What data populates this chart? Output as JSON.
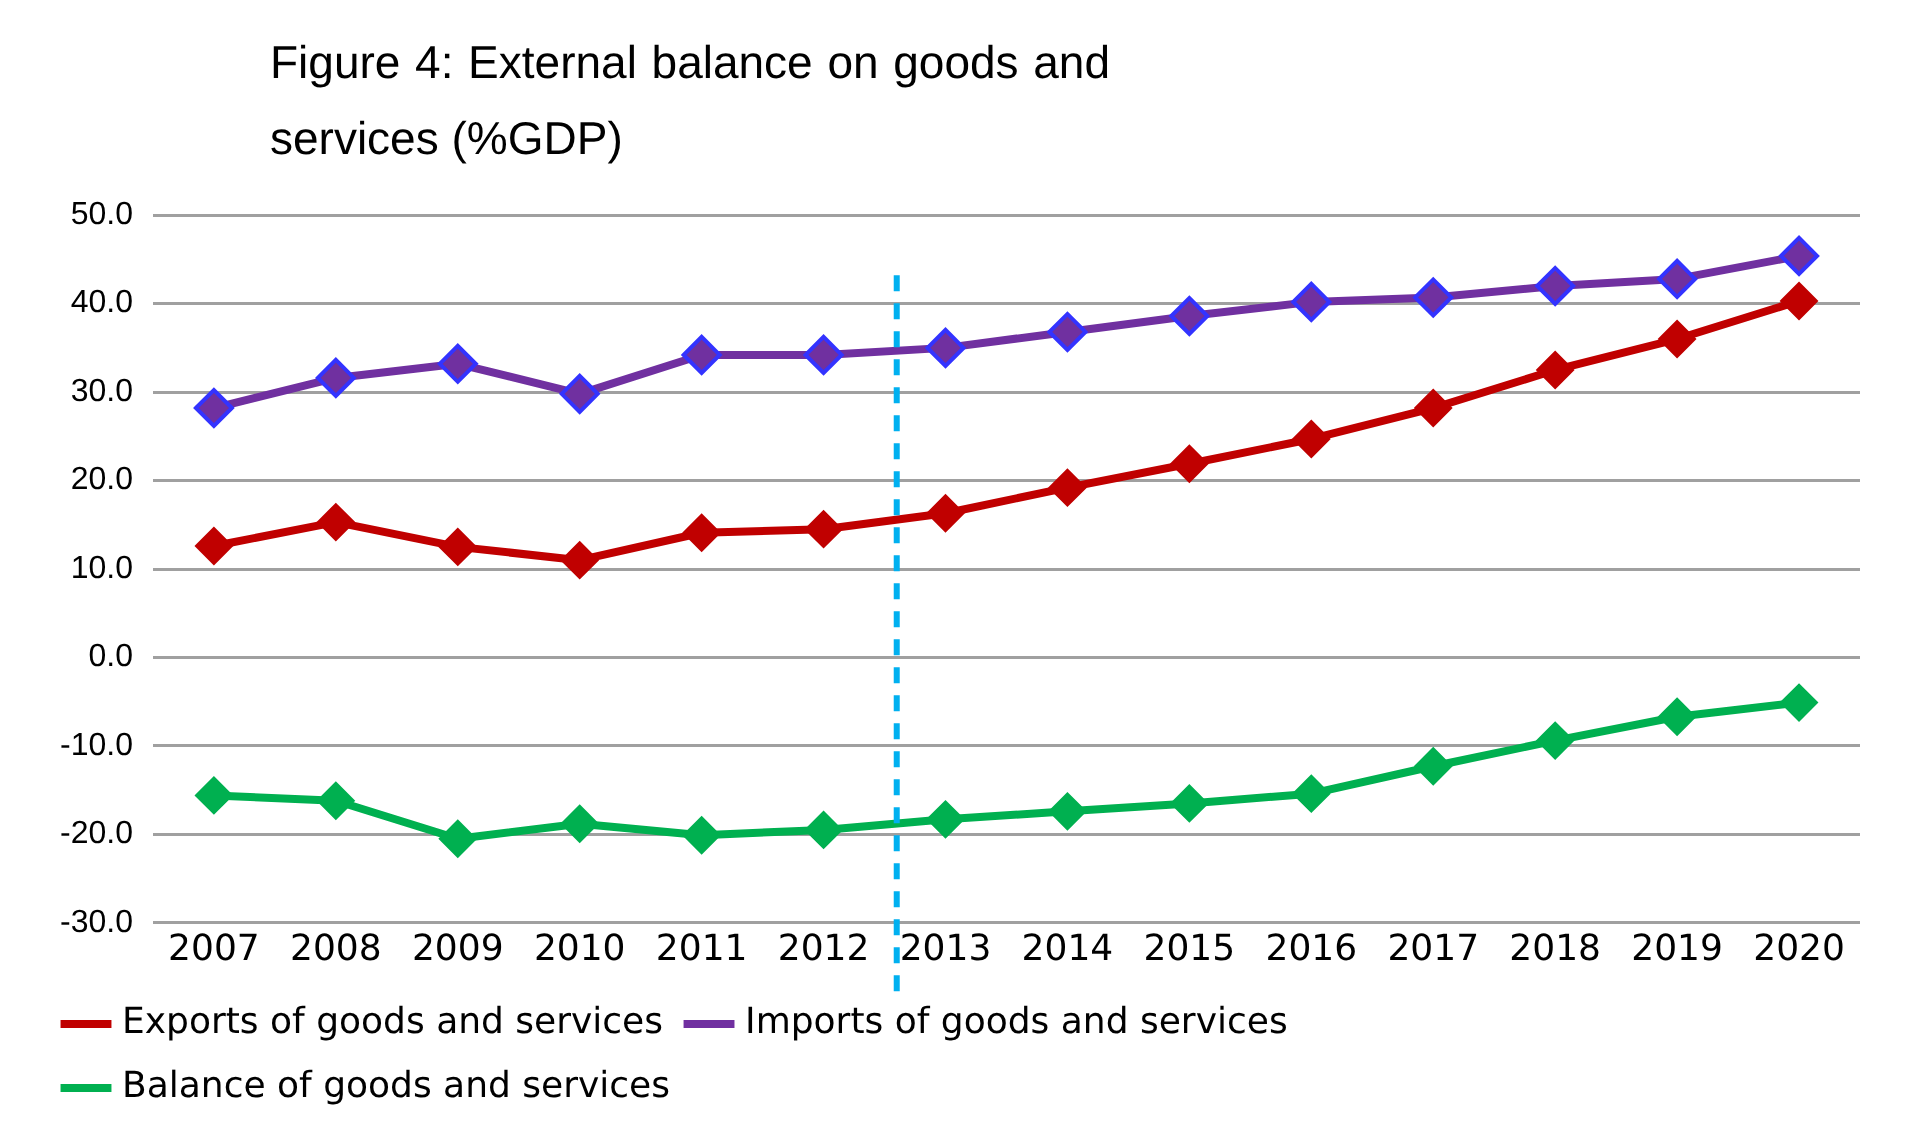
{
  "chart_data": {
    "type": "line",
    "title": "Figure 4: External balance on goods and services (%GDP)",
    "x": [
      2007,
      2008,
      2009,
      2010,
      2011,
      2012,
      2013,
      2014,
      2015,
      2016,
      2017,
      2018,
      2019,
      2020
    ],
    "xlim": [
      2006.5,
      2020.5
    ],
    "xticks": [
      2007,
      2008,
      2009,
      2010,
      2011,
      2012,
      2013,
      2014,
      2015,
      2016,
      2017,
      2018,
      2019,
      2020
    ],
    "ylim": [
      -30,
      50
    ],
    "yticks": [
      {
        "value": -30,
        "label": "-30.0"
      },
      {
        "value": -20,
        "label": "-20.0"
      },
      {
        "value": -10,
        "label": "-10.0"
      },
      {
        "value": 0,
        "label": "0.0"
      },
      {
        "value": 10,
        "label": "10.0"
      },
      {
        "value": 20,
        "label": "20.0"
      },
      {
        "value": 30,
        "label": "30.0"
      },
      {
        "value": 40,
        "label": "40.0"
      },
      {
        "value": 50,
        "label": "50.0"
      }
    ],
    "grid": "y",
    "legend": "bottom",
    "marker": "diamond",
    "line_style": "solid",
    "series": [
      {
        "name": "Exports of goods and services",
        "color": "#c00000",
        "values": [
          12.6,
          15.3,
          12.5,
          11.0,
          14.1,
          14.5,
          16.3,
          19.2,
          21.9,
          24.7,
          28.2,
          32.5,
          36.0,
          40.3
        ]
      },
      {
        "name": "Imports of goods and services",
        "color": "#7030a0",
        "values": [
          28.2,
          31.6,
          33.2,
          29.8,
          34.2,
          34.2,
          35.0,
          36.8,
          38.6,
          40.2,
          40.7,
          42.0,
          42.8,
          45.4
        ]
      },
      {
        "name": "Balance of goods and services",
        "color": "#00b050",
        "values": [
          -15.6,
          -16.2,
          -20.5,
          -18.8,
          -20.1,
          -19.5,
          -18.3,
          -17.4,
          -16.5,
          -15.4,
          -12.3,
          -9.4,
          -6.7,
          -5.1
        ]
      }
    ],
    "ref_lines": [
      {
        "axis": "x",
        "value": 2012.6,
        "color": "#00b0f0",
        "line_style": "dashed"
      }
    ]
  }
}
